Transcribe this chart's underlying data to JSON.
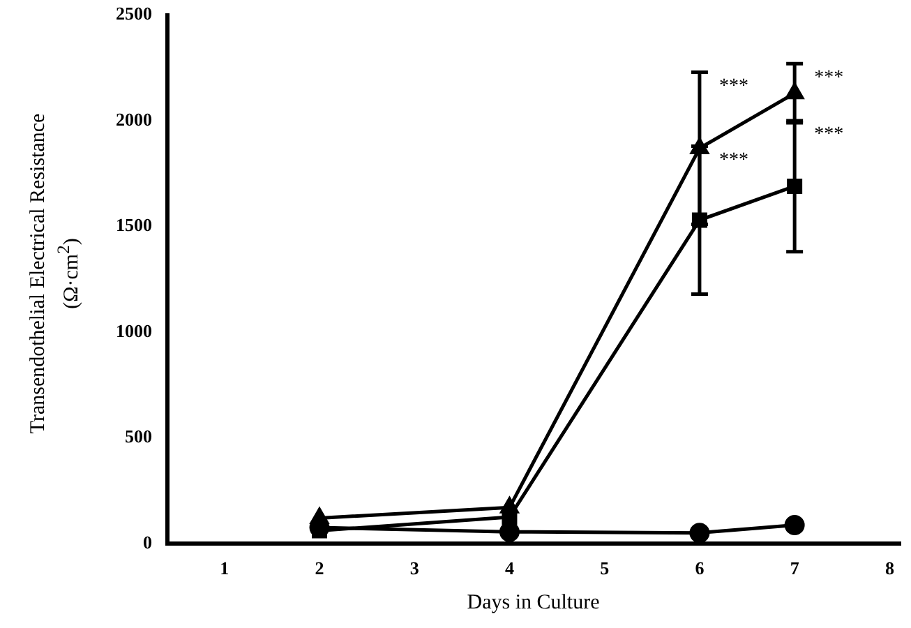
{
  "chart_data": {
    "type": "line",
    "xlabel": "Days in Culture",
    "ylabel": "Transendothelial Electrical Resistance (Ω·cm$^{2}$)",
    "x": [
      2,
      4,
      6,
      7
    ],
    "series": [
      {
        "color": "#000000",
        "marker": "triangle",
        "values": [
          120,
          170,
          1870,
          2130
        ],
        "errors": [
          null,
          null,
          360,
          140
        ]
      },
      {
        "color": "#000000",
        "marker": "square",
        "values": [
          60,
          125,
          1530,
          1690
        ],
        "errors": [
          null,
          null,
          350,
          310
        ]
      },
      {
        "color": "#000000",
        "marker": "circle",
        "values": [
          75,
          55,
          50,
          87
        ]
      }
    ],
    "xlim": [
      0.4,
      8.1
    ],
    "xticks": [
      1,
      2,
      3,
      4,
      5,
      6,
      7,
      8
    ],
    "ylim": [
      0,
      2500
    ],
    "yticks": [
      0,
      500,
      1000,
      1500,
      2000,
      2500
    ],
    "grid": false,
    "legend": false,
    "annotations": [
      "***",
      "***",
      "***",
      "***"
    ]
  }
}
